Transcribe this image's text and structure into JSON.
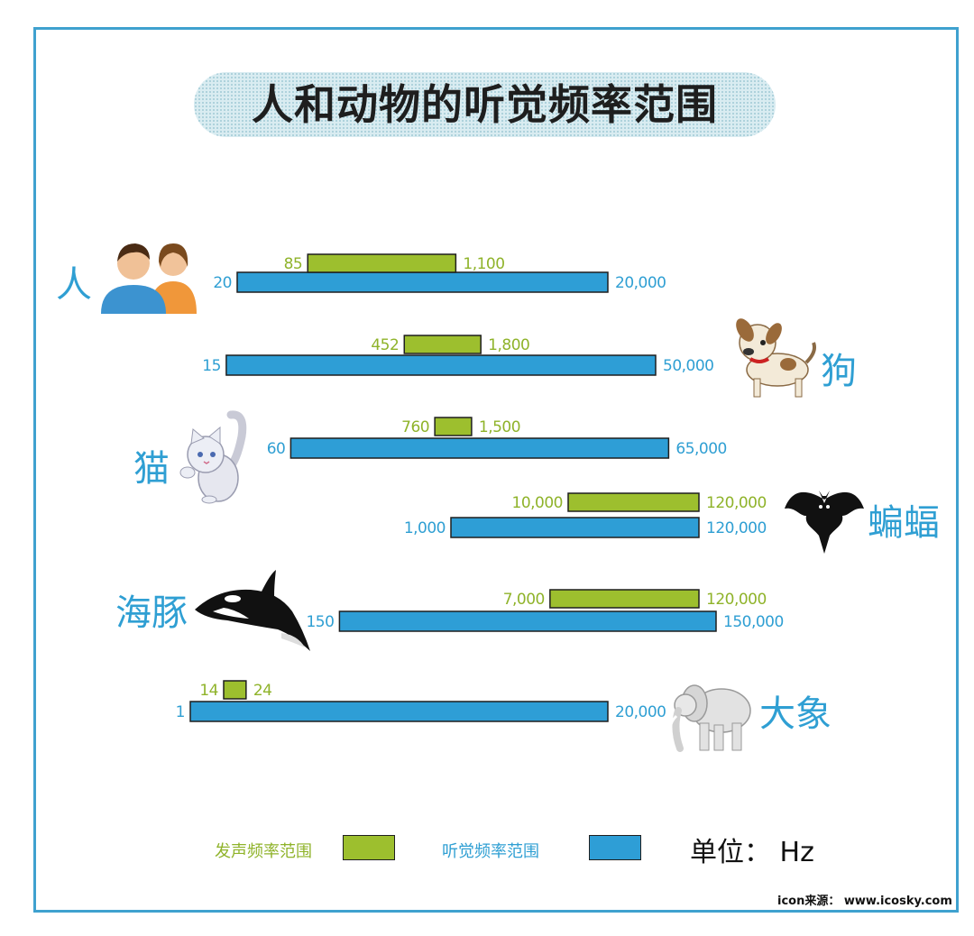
{
  "chart_data": {
    "type": "bar",
    "title": "人和动物的听觉频率范围",
    "unit_label": "单位： Hz",
    "source": "icon来源： www.icosky.com",
    "legend": [
      {
        "label": "发声频率范围",
        "color": "#9dbf2e"
      },
      {
        "label": "听觉频率范围",
        "color": "#2e9ed6"
      }
    ],
    "categories": [
      "人",
      "狗",
      "猫",
      "蝙蝠",
      "海豚",
      "大象"
    ],
    "series": [
      {
        "name": "发声频率范围",
        "ranges": [
          {
            "low": 85,
            "high": 1100,
            "low_label": "85",
            "high_label": "1,100"
          },
          {
            "low": 452,
            "high": 1800,
            "low_label": "452",
            "high_label": "1,800"
          },
          {
            "low": 760,
            "high": 1500,
            "low_label": "760",
            "high_label": "1,500"
          },
          {
            "low": 10000,
            "high": 120000,
            "low_label": "10,000",
            "high_label": "120,000"
          },
          {
            "low": 7000,
            "high": 120000,
            "low_label": "7,000",
            "high_label": "120,000"
          },
          {
            "low": 14,
            "high": 24,
            "low_label": "14",
            "high_label": "24"
          }
        ]
      },
      {
        "name": "听觉频率范围",
        "ranges": [
          {
            "low": 20,
            "high": 20000,
            "low_label": "20",
            "high_label": "20,000"
          },
          {
            "low": 15,
            "high": 50000,
            "low_label": "15",
            "high_label": "50,000"
          },
          {
            "low": 60,
            "high": 65000,
            "low_label": "60",
            "high_label": "65,000"
          },
          {
            "low": 1000,
            "high": 120000,
            "low_label": "1,000",
            "high_label": "120,000"
          },
          {
            "low": 150,
            "high": 150000,
            "low_label": "150",
            "high_label": "150,000"
          },
          {
            "low": 1,
            "high": 20000,
            "low_label": "1",
            "high_label": "20,000"
          }
        ]
      }
    ],
    "colors": {
      "vocal": "#9dbf2e",
      "hearing": "#2e9ed6",
      "vocal_text": "#8fb32a",
      "hearing_text": "#2f9fd3",
      "frame": "#3fa1cf"
    },
    "icons": [
      "people-icon",
      "dog-icon",
      "cat-icon",
      "bat-icon",
      "orca-icon",
      "elephant-icon"
    ]
  }
}
